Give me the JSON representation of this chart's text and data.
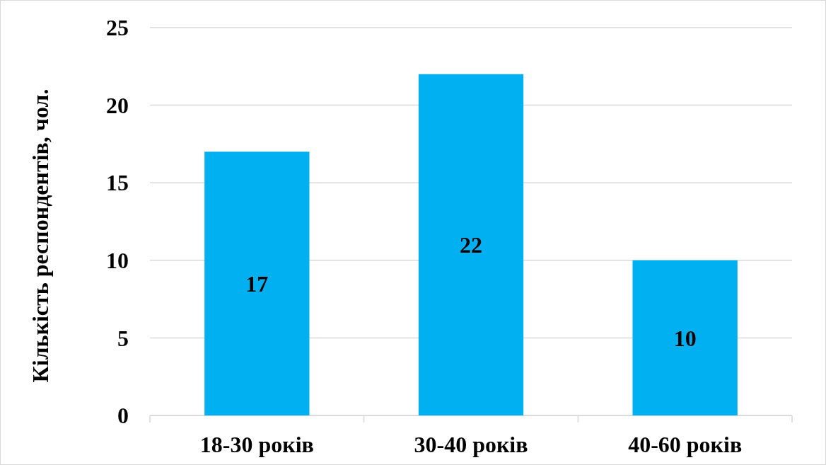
{
  "chart_data": {
    "type": "bar",
    "ylabel": "Кількість респондентів, чол.",
    "categories": [
      "18-30 років",
      "30-40 років",
      "40-60 років"
    ],
    "values": [
      17,
      22,
      10
    ],
    "color": "#00b0f0",
    "ylim": [
      0,
      25
    ],
    "yticks": [
      0,
      5,
      10,
      15,
      20,
      25
    ],
    "grid": "y",
    "data_labels": true
  }
}
